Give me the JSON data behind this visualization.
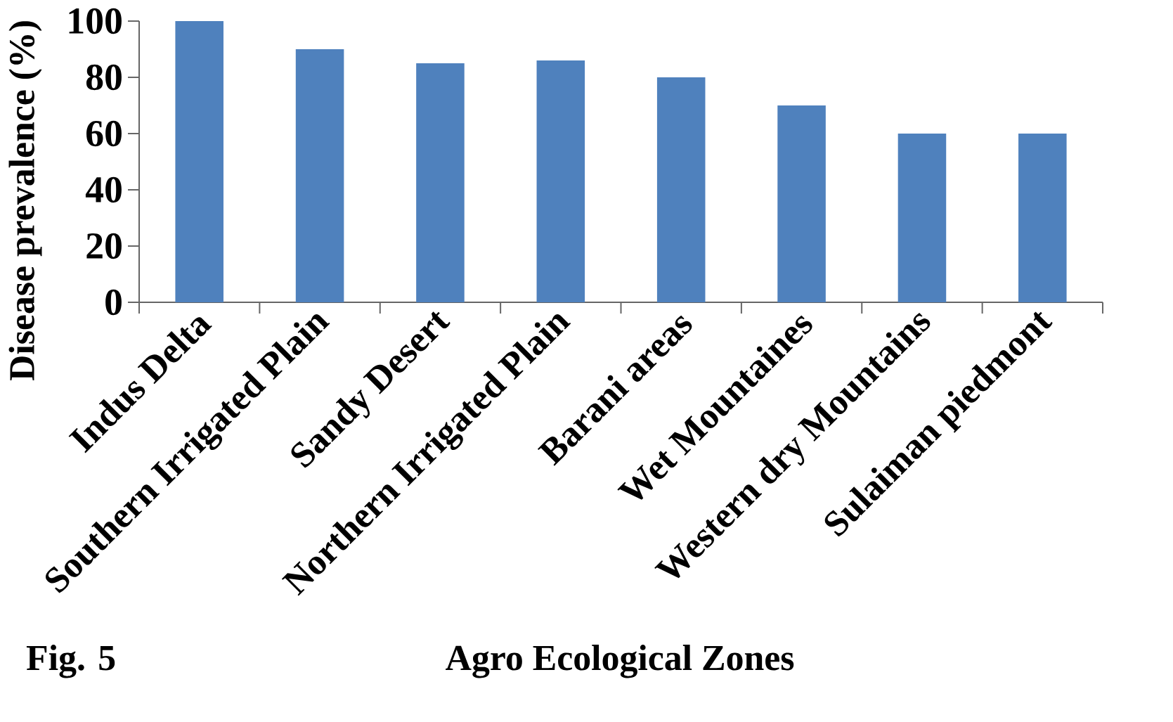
{
  "chart_data": {
    "type": "bar",
    "xlabel": "Agro Ecological Zones",
    "ylabel": "Disease prevalence (%)",
    "categories": [
      "Indus Delta",
      "Southern Irrigated Plain",
      "Sandy Desert",
      "Northern Irrigated Plain",
      "Barani areas",
      "Wet Mountaines",
      "Western dry Mountains",
      "Sulaiman piedmont"
    ],
    "values": [
      100,
      90,
      85,
      86,
      80,
      70,
      60,
      60
    ],
    "color": "#4f81bd",
    "ylim": [
      0,
      100
    ],
    "yticks": [
      0,
      20,
      40,
      60,
      80,
      100
    ],
    "grid": false,
    "annotations": [
      "Fig. 5"
    ]
  }
}
